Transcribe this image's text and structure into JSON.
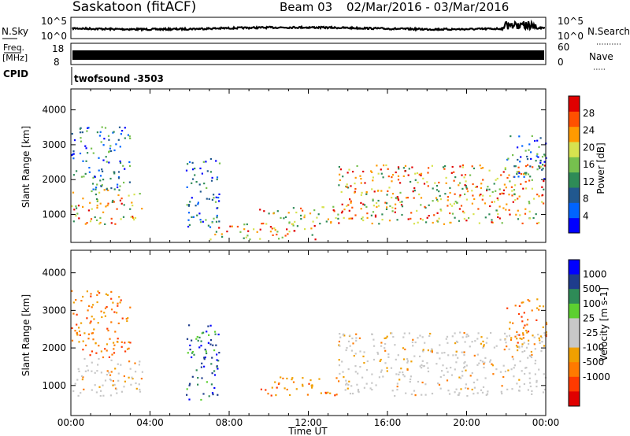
{
  "header": {
    "station": "Saskatoon (fitACF)",
    "beam": "Beam 03",
    "date_range": "02/Mar/2016 - 03/Mar/2016"
  },
  "noise_panel": {
    "left_label": "N.Sky",
    "left_top_tick": "10^5",
    "left_bottom_tick": "10^0",
    "right_top_tick": "10^5",
    "right_bottom_tick": "10^0",
    "right_label": "N.Search"
  },
  "freq_panel": {
    "left_label_1": "Freq.",
    "left_label_2": "[MHz]",
    "left_top_tick": "18",
    "left_bottom_tick": "8",
    "right_top_tick": "60",
    "right_bottom_tick": "0",
    "right_label": "Nave"
  },
  "cpid_panel": {
    "label": "CPID",
    "program": "twofsound -3503"
  },
  "colors": {
    "power": [
      "#0000ff",
      "#0064ff",
      "#21588f",
      "#2e8b57",
      "#76c04e",
      "#d7e34f",
      "#ff9a00",
      "#ff5000",
      "#e00000"
    ],
    "velocity": [
      "#0000ff",
      "#1e3c8c",
      "#2e8b57",
      "#5cd030",
      "#c8c8c8",
      "#c8c8c8",
      "#f0a000",
      "#ff7a00",
      "#ff3a00",
      "#e00000"
    ]
  },
  "chart_data": [
    {
      "type": "heatmap",
      "name": "power",
      "ylabel": "Slant Range [km]",
      "xlabel": "",
      "xlim": [
        "00:00",
        "24:00"
      ],
      "ylim": [
        200,
        4600
      ],
      "x_ticks": [
        "00:00",
        "04:00",
        "08:00",
        "12:00",
        "16:00",
        "20:00",
        "00:00"
      ],
      "y_ticks": [
        1000,
        2000,
        3000,
        4000
      ],
      "colorbar": {
        "label": "Power [dB]",
        "ticks": [
          "4",
          "8",
          "12",
          "16",
          "20",
          "24",
          "28"
        ],
        "range": [
          0,
          30
        ]
      },
      "regions": [
        {
          "t": [
            0.0,
            3.6
          ],
          "r": [
            700,
            1700
          ],
          "dominant": "high"
        },
        {
          "t": [
            0.0,
            3.0
          ],
          "r": [
            1700,
            3500
          ],
          "dominant": "mid"
        },
        {
          "t": [
            5.8,
            7.5
          ],
          "r": [
            600,
            2600
          ],
          "dominant": "mid"
        },
        {
          "t": [
            7.0,
            12.5
          ],
          "r": [
            250,
            700
          ],
          "dominant": "high"
        },
        {
          "t": [
            9.5,
            13.5
          ],
          "r": [
            700,
            1200
          ],
          "dominant": "high"
        },
        {
          "t": [
            13.5,
            24.0
          ],
          "r": [
            700,
            2400
          ],
          "dominant": "high"
        },
        {
          "t": [
            22.0,
            24.0
          ],
          "r": [
            2000,
            3300
          ],
          "dominant": "mid"
        }
      ]
    },
    {
      "type": "heatmap",
      "name": "velocity",
      "ylabel": "Slant Range [km]",
      "xlabel": "Time UT",
      "xlim": [
        "00:00",
        "24:00"
      ],
      "ylim": [
        200,
        4600
      ],
      "x_ticks": [
        "00:00",
        "04:00",
        "08:00",
        "12:00",
        "16:00",
        "20:00",
        "00:00"
      ],
      "y_ticks": [
        1000,
        2000,
        3000,
        4000
      ],
      "colorbar": {
        "label": "Velocity [m s-1]",
        "ticks": [
          "1000",
          "500",
          "100",
          "25",
          "-25",
          "-100",
          "-500",
          "-1000"
        ]
      },
      "regions": [
        {
          "t": [
            0.0,
            3.6
          ],
          "r": [
            700,
            1700
          ],
          "dominant": "ground"
        },
        {
          "t": [
            0.0,
            3.0
          ],
          "r": [
            1700,
            3500
          ],
          "dominant": "negative"
        },
        {
          "t": [
            5.8,
            7.5
          ],
          "r": [
            600,
            2600
          ],
          "dominant": "positive"
        },
        {
          "t": [
            9.5,
            13.5
          ],
          "r": [
            700,
            1200
          ],
          "dominant": "negative"
        },
        {
          "t": [
            13.5,
            24.0
          ],
          "r": [
            700,
            2400
          ],
          "dominant": "ground"
        },
        {
          "t": [
            22.0,
            24.0
          ],
          "r": [
            2000,
            3300
          ],
          "dominant": "negative"
        }
      ]
    }
  ]
}
